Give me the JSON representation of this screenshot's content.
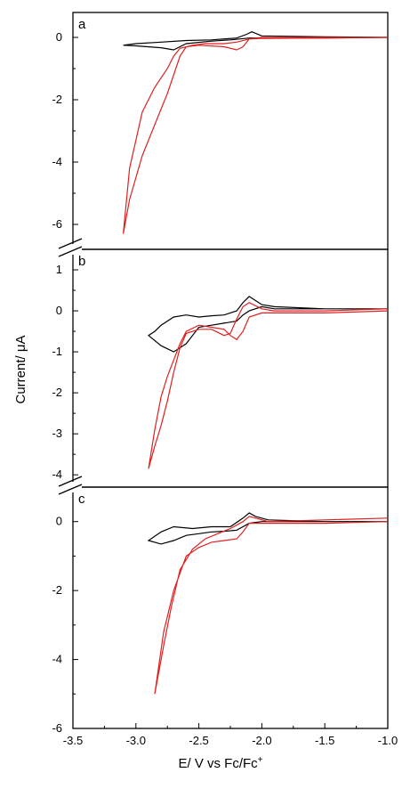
{
  "chart_data": {
    "type": "line",
    "xlabel": "E/ V vs Fc/Fc",
    "xlabel_superscript": "+",
    "ylabel": "Current/ μA",
    "xlim": [
      -3.5,
      -1.0
    ],
    "x_ticks": [
      -3.5,
      -3.0,
      -2.5,
      -2.0,
      -1.5,
      -1.0
    ],
    "x_tick_labels": [
      "-3.5",
      "-3.0",
      "-2.5",
      "-2.0",
      "-1.5",
      "-1.0"
    ],
    "series_colors": {
      "black": "#000000",
      "red": "#e02020"
    },
    "axis_break": true,
    "panels": [
      {
        "label": "a",
        "ylim": [
          -6.8,
          0.8
        ],
        "y_ticks": [
          0,
          -2,
          -4,
          -6
        ],
        "y_tick_labels": [
          "0",
          "-2",
          "-4",
          "-6"
        ],
        "series": [
          {
            "color": "black",
            "x": [
              -1.0,
              -1.5,
              -2.0,
              -2.08,
              -2.12,
              -2.2,
              -2.4,
              -2.6,
              -2.8,
              -3.0,
              -3.1,
              -3.0,
              -2.8,
              -2.7,
              -2.6,
              -2.4,
              -2.25,
              -2.18,
              -2.1,
              -2.0,
              -1.5,
              -1.0
            ],
            "y": [
              0.0,
              0.02,
              0.05,
              0.18,
              0.1,
              -0.02,
              -0.08,
              -0.1,
              -0.15,
              -0.2,
              -0.25,
              -0.27,
              -0.33,
              -0.4,
              -0.2,
              -0.12,
              -0.08,
              -0.05,
              -0.02,
              -0.02,
              -0.02,
              0.0
            ]
          },
          {
            "color": "red",
            "x": [
              -1.0,
              -1.5,
              -2.0,
              -2.1,
              -2.15,
              -2.2,
              -2.3,
              -2.5,
              -2.6,
              -2.65,
              -2.7,
              -2.75,
              -2.85,
              -2.95,
              -3.05,
              -3.1,
              -3.05,
              -2.95,
              -2.85,
              -2.75,
              -2.7,
              -2.65,
              -2.55,
              -2.45,
              -2.3,
              -2.2,
              -2.1,
              -2.0,
              -1.5,
              -1.0
            ],
            "y": [
              0.0,
              0.0,
              0.0,
              -0.05,
              -0.3,
              -0.4,
              -0.3,
              -0.25,
              -0.3,
              -0.6,
              -1.2,
              -1.8,
              -2.8,
              -3.8,
              -5.2,
              -6.3,
              -4.2,
              -2.4,
              -1.6,
              -1.0,
              -0.6,
              -0.35,
              -0.25,
              -0.2,
              -0.2,
              -0.15,
              -0.05,
              -0.03,
              -0.02,
              0.0
            ]
          }
        ]
      },
      {
        "label": "b",
        "ylim": [
          -4.3,
          1.5
        ],
        "y_ticks": [
          1,
          0,
          -1,
          -2,
          -3,
          -4
        ],
        "y_tick_labels": [
          "1",
          "0",
          "-1",
          "-2",
          "-3",
          "-4"
        ],
        "series": [
          {
            "color": "black",
            "x": [
              -1.0,
              -1.5,
              -1.9,
              -2.0,
              -2.05,
              -2.1,
              -2.15,
              -2.2,
              -2.3,
              -2.4,
              -2.5,
              -2.6,
              -2.7,
              -2.8,
              -2.85,
              -2.9,
              -2.8,
              -2.7,
              -2.6,
              -2.5,
              -2.4,
              -2.3,
              -2.2,
              -2.15,
              -2.1,
              -2.0,
              -1.9,
              -1.5,
              -1.0
            ],
            "y": [
              0.05,
              0.05,
              0.1,
              0.15,
              0.25,
              0.35,
              0.2,
              0.0,
              -0.1,
              -0.12,
              -0.15,
              -0.1,
              -0.15,
              -0.35,
              -0.5,
              -0.6,
              -0.85,
              -1.0,
              -0.8,
              -0.4,
              -0.35,
              -0.3,
              -0.25,
              -0.1,
              0.0,
              0.1,
              0.05,
              0.05,
              0.05
            ]
          },
          {
            "color": "red",
            "x": [
              -1.0,
              -1.5,
              -1.9,
              -2.0,
              -2.1,
              -2.15,
              -2.2,
              -2.25,
              -2.3,
              -2.4,
              -2.5,
              -2.6,
              -2.65,
              -2.7,
              -2.75,
              -2.8,
              -2.85,
              -2.9,
              -2.85,
              -2.8,
              -2.75,
              -2.7,
              -2.65,
              -2.6,
              -2.5,
              -2.4,
              -2.3,
              -2.25,
              -2.2,
              -2.15,
              -2.1,
              -2.0,
              -1.5,
              -1.0
            ],
            "y": [
              0.05,
              0.0,
              0.0,
              0.05,
              0.2,
              0.1,
              -0.2,
              -0.55,
              -0.6,
              -0.45,
              -0.45,
              -0.55,
              -0.9,
              -1.5,
              -2.2,
              -2.8,
              -3.3,
              -3.85,
              -2.9,
              -2.1,
              -1.6,
              -1.2,
              -0.8,
              -0.5,
              -0.35,
              -0.4,
              -0.45,
              -0.6,
              -0.7,
              -0.5,
              -0.15,
              -0.05,
              -0.05,
              0.0
            ]
          }
        ]
      },
      {
        "label": "c",
        "ylim": [
          -6.0,
          1.0
        ],
        "y_ticks": [
          0,
          -2,
          -4,
          -6
        ],
        "y_tick_labels": [
          "0",
          "-2",
          "-4",
          "-6"
        ],
        "series": [
          {
            "color": "black",
            "x": [
              -1.0,
              -1.5,
              -1.95,
              -2.05,
              -2.1,
              -2.15,
              -2.25,
              -2.4,
              -2.55,
              -2.7,
              -2.8,
              -2.9,
              -2.8,
              -2.7,
              -2.6,
              -2.5,
              -2.4,
              -2.3,
              -2.2,
              -2.1,
              -2.0,
              -1.5,
              -1.0
            ],
            "y": [
              0.0,
              0.0,
              0.05,
              0.15,
              0.25,
              0.1,
              -0.15,
              -0.15,
              -0.2,
              -0.15,
              -0.3,
              -0.55,
              -0.65,
              -0.55,
              -0.4,
              -0.35,
              -0.3,
              -0.28,
              -0.25,
              -0.05,
              0.0,
              0.0,
              0.0
            ]
          },
          {
            "color": "red",
            "x": [
              -1.0,
              -1.5,
              -1.95,
              -2.05,
              -2.1,
              -2.15,
              -2.25,
              -2.35,
              -2.45,
              -2.55,
              -2.65,
              -2.72,
              -2.78,
              -2.85,
              -2.78,
              -2.7,
              -2.6,
              -2.5,
              -2.4,
              -2.3,
              -2.2,
              -2.15,
              -2.1,
              -2.0,
              -1.5,
              -1.0
            ],
            "y": [
              0.1,
              0.05,
              0.0,
              0.1,
              0.15,
              0.0,
              -0.2,
              -0.35,
              -0.5,
              -0.8,
              -1.4,
              -2.5,
              -3.6,
              -5.0,
              -3.2,
              -2.0,
              -1.0,
              -0.75,
              -0.6,
              -0.55,
              -0.5,
              -0.3,
              -0.05,
              -0.05,
              -0.05,
              0.0
            ]
          }
        ]
      }
    ]
  }
}
